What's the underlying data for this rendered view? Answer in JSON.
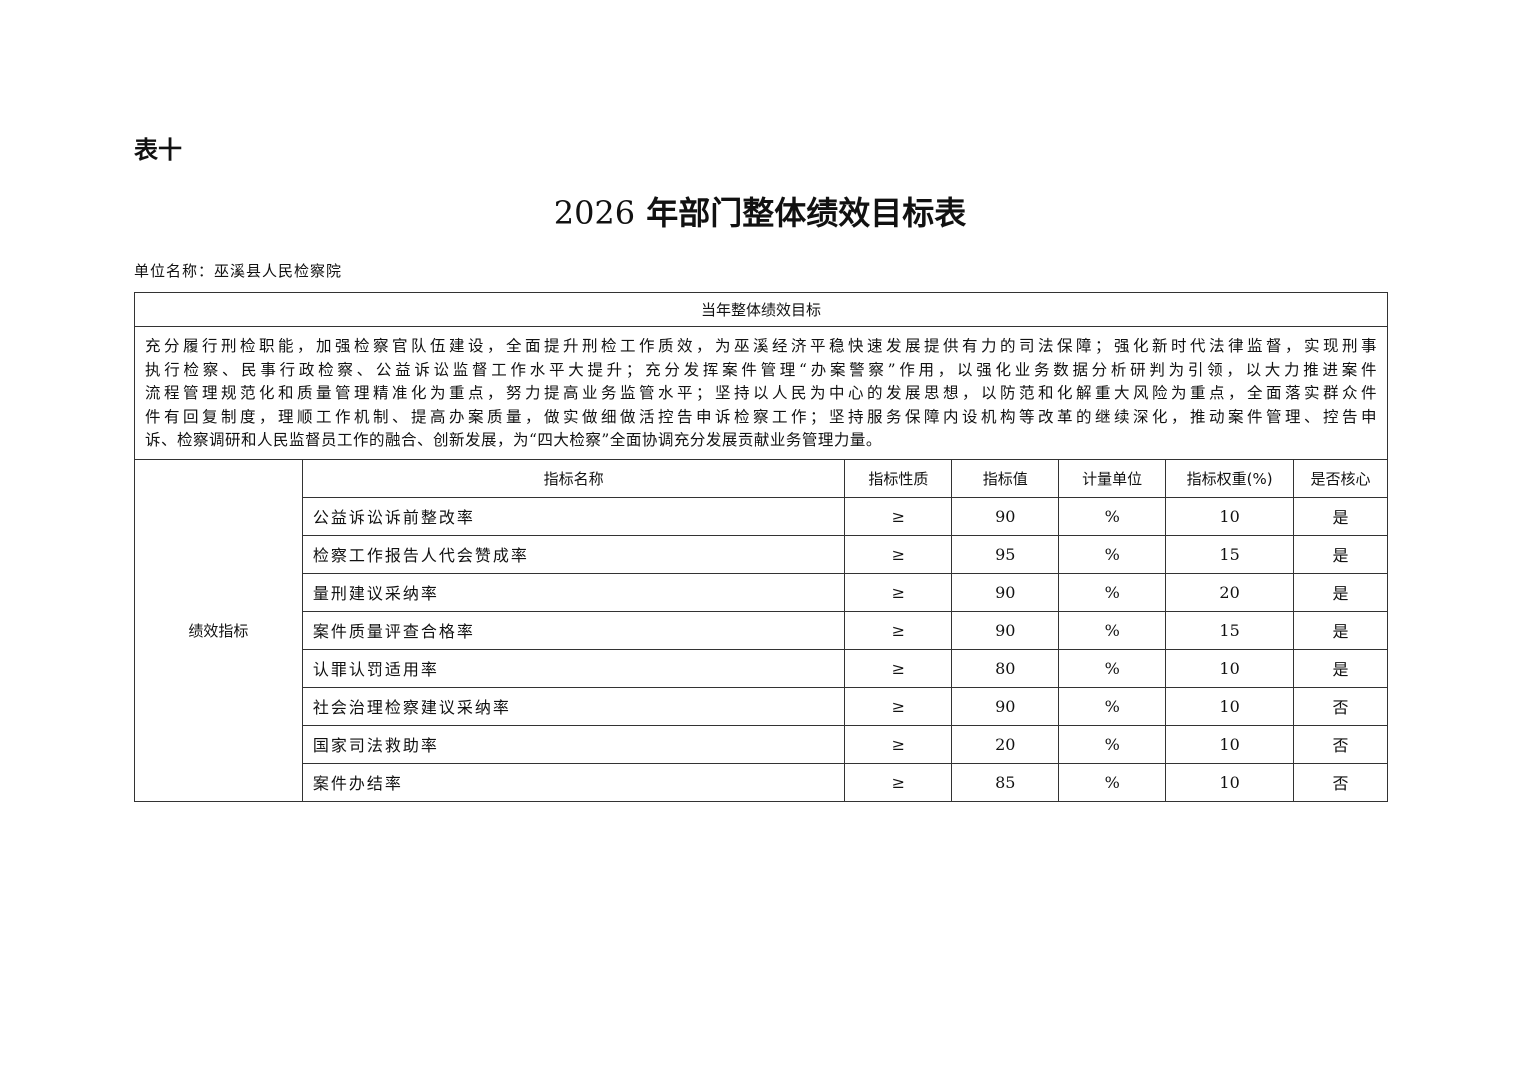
{
  "doc_label": "表十",
  "title_year": "2026",
  "title_text": "年部门整体绩效目标表",
  "unit_name": "单位名称：巫溪县人民检察院",
  "section_header": "当年整体绩效目标",
  "goal_lines": [
    "充分履行刑检职能，加强检察官队伍建设，全面提升刑检工作质效，为巫溪经济平稳快速发展提供有力的司法保障；强化新时代法律监督，实现刑事",
    "执行检察、民事行政检察、公益诉讼监督工作水平大提升；充分发挥案件管理“办案警察”作用，以强化业务数据分析研判为引领，以大力推进案件",
    "流程管理规范化和质量管理精准化为重点，努力提高业务监管水平；坚持以人民为中心的发展思想，以防范和化解重大风险为重点，全面落实群众件",
    "件有回复制度，理顺工作机制、提高办案质量，做实做细做活控告申诉检察工作；坚持服务保障内设机构等改革的继续深化，推动案件管理、控告申",
    "诉、检察调研和人民监督员工作的融合、创新发展，为“四大检察”全面协调充分发展贡献业务管理力量。"
  ],
  "indicators_label": "绩效指标",
  "columns": [
    "指标名称",
    "指标性质",
    "指标值",
    "计量单位",
    "指标权重(%)",
    "是否核心"
  ],
  "rows": [
    [
      "公益诉讼诉前整改率",
      "≥",
      "90",
      "%",
      "10",
      "是"
    ],
    [
      "检察工作报告人代会赞成率",
      "≥",
      "95",
      "%",
      "15",
      "是"
    ],
    [
      "量刑建议采纳率",
      "≥",
      "90",
      "%",
      "20",
      "是"
    ],
    [
      "案件质量评查合格率",
      "≥",
      "90",
      "%",
      "15",
      "是"
    ],
    [
      "认罪认罚适用率",
      "≥",
      "80",
      "%",
      "10",
      "是"
    ],
    [
      "社会治理检察建议采纳率",
      "≥",
      "90",
      "%",
      "10",
      "否"
    ],
    [
      "国家司法救助率",
      "≥",
      "20",
      "%",
      "10",
      "否"
    ],
    [
      "案件办结率",
      "≥",
      "85",
      "%",
      "10",
      "否"
    ]
  ]
}
